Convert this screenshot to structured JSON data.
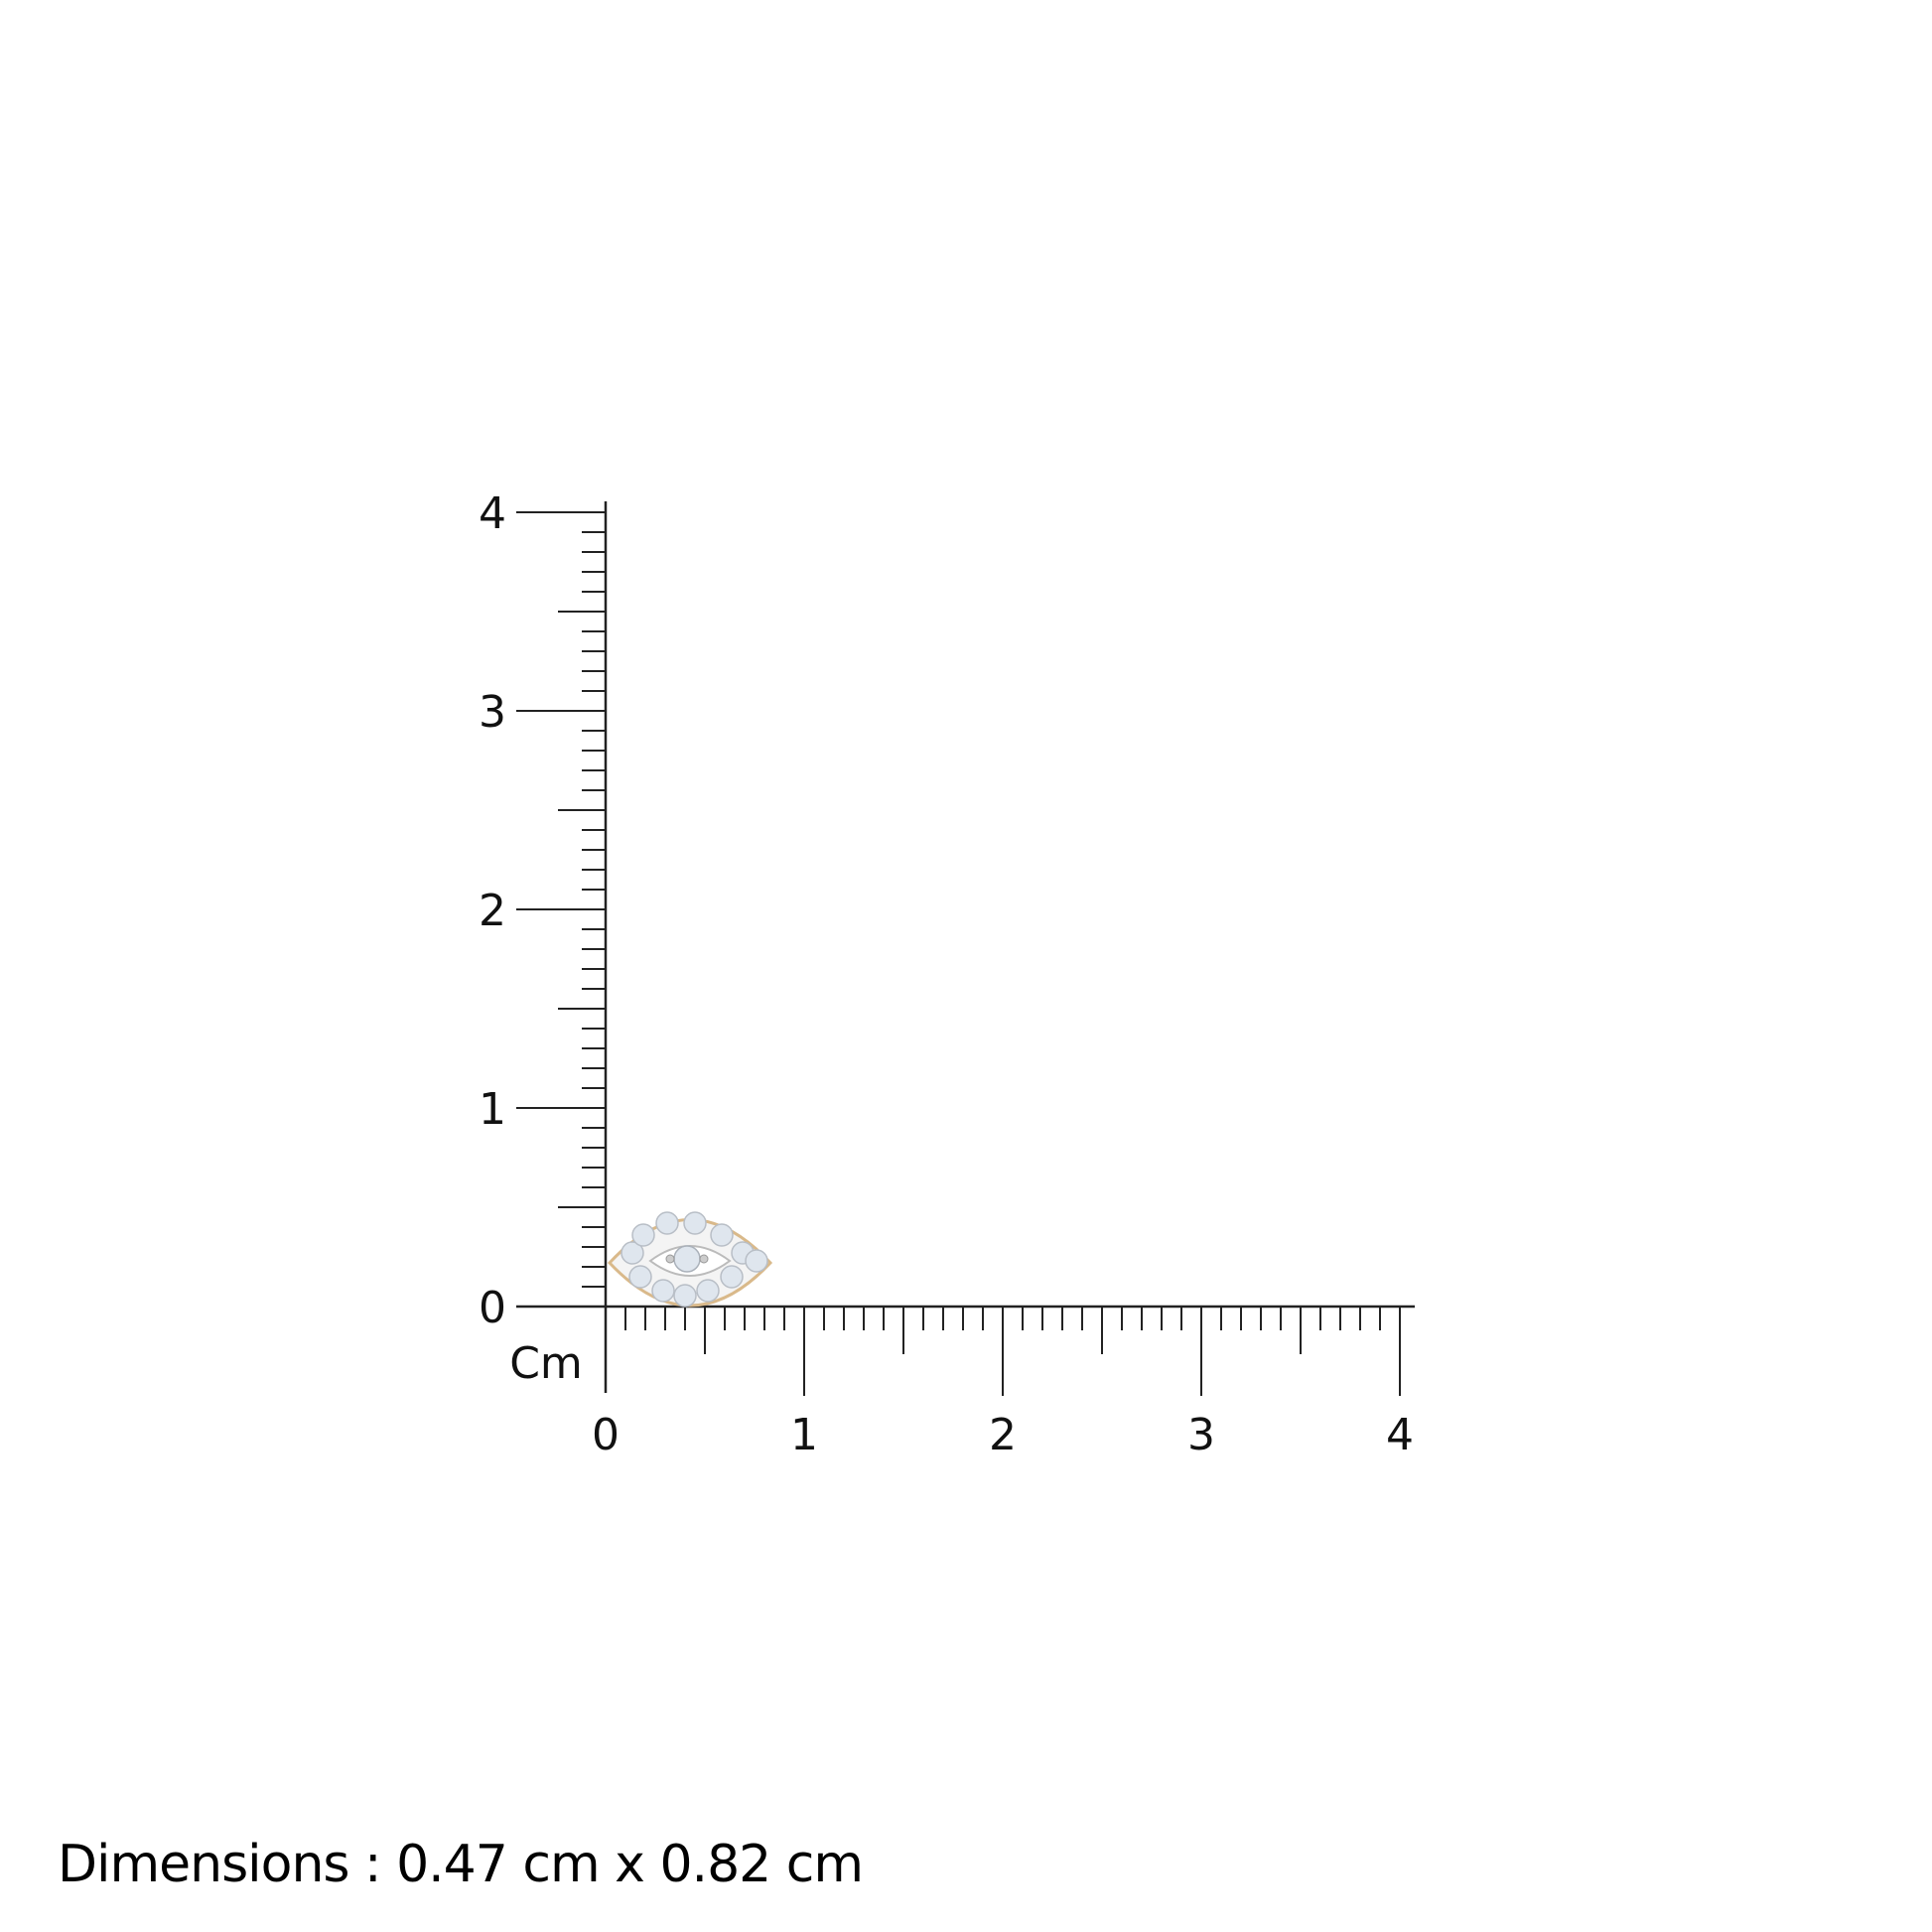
{
  "ruler": {
    "unit_label": "Cm",
    "x_ticks": [
      "0",
      "1",
      "2",
      "3",
      "4"
    ],
    "y_ticks": [
      "0",
      "1",
      "2",
      "3",
      "4"
    ],
    "range_cm": [
      0,
      4
    ],
    "minor_step_cm": 0.1,
    "line_color": "#222222"
  },
  "product": {
    "type": "marquise evil-eye diamond stud",
    "metal_color": "#d9b98a",
    "stone_color": "#dfe6ee"
  },
  "caption": {
    "text": "Dimensions : 0.47 cm x 0.82 cm"
  }
}
